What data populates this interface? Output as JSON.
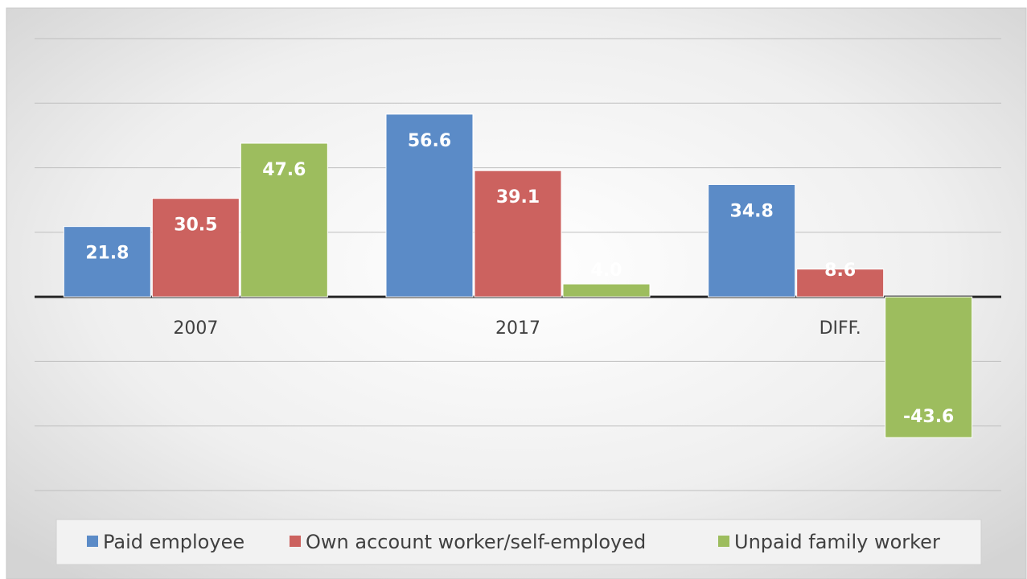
{
  "chart_data": {
    "type": "bar",
    "categories": [
      "2007",
      "2017",
      "DIFF."
    ],
    "series": [
      {
        "name": "Paid employee",
        "color": "#5b8bc7",
        "values": [
          21.8,
          56.6,
          34.8
        ]
      },
      {
        "name": "Own account worker/self-employed",
        "color": "#cc625f",
        "values": [
          30.5,
          39.1,
          8.6
        ]
      },
      {
        "name": "Unpaid family worker",
        "color": "#9dbd5e",
        "values": [
          47.6,
          4.0,
          -43.6
        ],
        "value_labels": [
          "47.6",
          "4.0",
          "-43.6"
        ]
      }
    ],
    "value_labels": [
      [
        "21.8",
        "56.6",
        "34.8"
      ],
      [
        "30.5",
        "39.1",
        "8.6"
      ]
    ],
    "ylim": [
      -60,
      80
    ],
    "yticks": [
      -60,
      -40,
      -20,
      0,
      20,
      40,
      60,
      80
    ],
    "grid": true,
    "legend": "bottom"
  }
}
